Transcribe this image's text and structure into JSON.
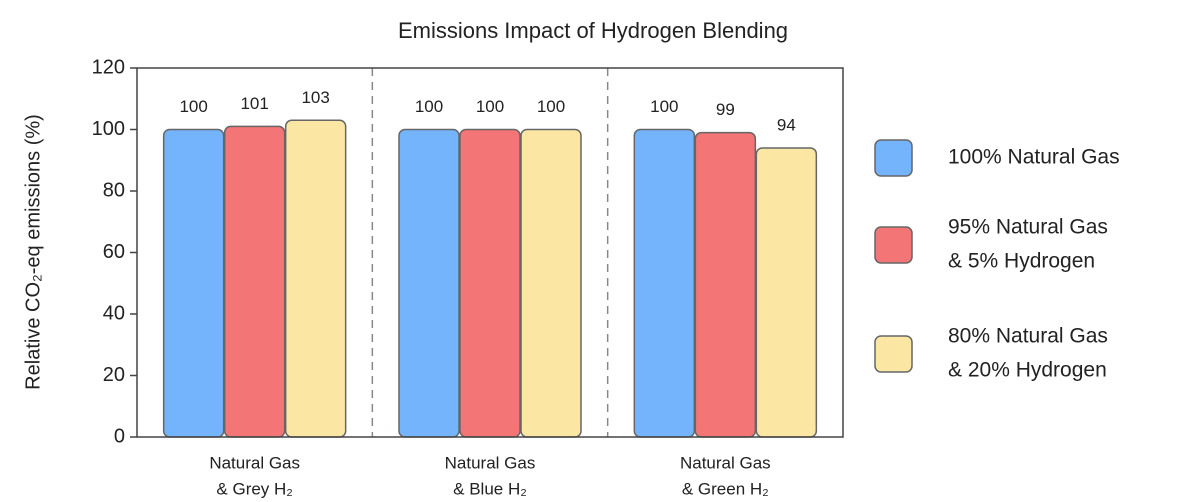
{
  "chart_data": {
    "type": "bar",
    "title": "Emissions Impact of Hydrogen Blending",
    "ylabel": "Relative CO₂-eq emissions (%)",
    "categories": [
      [
        "Natural Gas",
        "& Grey H₂"
      ],
      [
        "Natural Gas",
        "& Blue H₂"
      ],
      [
        "Natural Gas",
        "& Green H₂"
      ]
    ],
    "series": [
      {
        "name": [
          "100% Natural Gas"
        ],
        "color": "#74b4fc",
        "values": [
          100,
          100,
          100
        ]
      },
      {
        "name": [
          "95% Natural Gas",
          "& 5% Hydrogen"
        ],
        "color": "#f47575",
        "values": [
          101,
          100,
          99
        ]
      },
      {
        "name": [
          "80% Natural Gas",
          "& 20% Hydrogen"
        ],
        "color": "#fce6a4",
        "values": [
          103,
          100,
          94
        ]
      }
    ],
    "ylim": [
      0,
      120
    ],
    "yticks": [
      0,
      20,
      40,
      60,
      80,
      100,
      120
    ],
    "legend": "right"
  }
}
